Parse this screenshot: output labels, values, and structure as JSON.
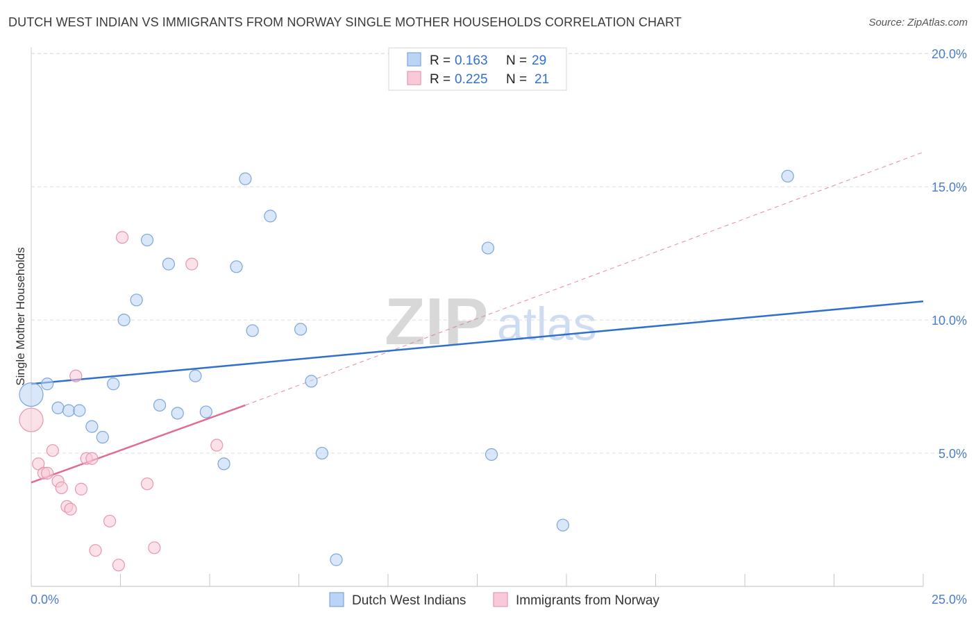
{
  "title": "DUTCH WEST INDIAN VS IMMIGRANTS FROM NORWAY SINGLE MOTHER HOUSEHOLDS CORRELATION CHART",
  "source": "Source: ZipAtlas.com",
  "watermark": {
    "zip": "ZIP",
    "atlas": "atlas"
  },
  "colors": {
    "blue_fill": "#bcd4f4",
    "blue_stroke": "#7aa6dc",
    "blue_line": "#2f6fce",
    "pink_fill": "#f8c9d6",
    "pink_stroke": "#e895b0",
    "pink_line": "#e06b96",
    "tick_label": "#4a7cc9",
    "grid": "#dcdcdc"
  },
  "legend_top": [
    {
      "r_label": "R =",
      "r_value": "0.163",
      "n_label": "N =",
      "n_value": "29"
    },
    {
      "r_label": "R =",
      "r_value": "0.225",
      "n_label": "N =",
      "n_value": "21"
    }
  ],
  "chart_data": {
    "type": "scatter",
    "title": "DUTCH WEST INDIAN VS IMMIGRANTS FROM NORWAY SINGLE MOTHER HOUSEHOLDS CORRELATION CHART",
    "xlabel": "",
    "ylabel": "Single Mother Households",
    "xlim": [
      0,
      25
    ],
    "ylim": [
      0,
      20.5
    ],
    "x_tick_labels": [
      "0.0%",
      "25.0%"
    ],
    "y_ticks": [
      5,
      10,
      15,
      20
    ],
    "y_tick_labels": [
      "5.0%",
      "10.0%",
      "15.0%",
      "20.0%"
    ],
    "legend_position": "bottom-center",
    "series": [
      {
        "name": "Dutch West Indians",
        "color": "blue",
        "r": 0.163,
        "n": 29,
        "trend": {
          "x": [
            0,
            25
          ],
          "y": [
            7.6,
            10.7
          ],
          "style": "solid"
        },
        "points": [
          {
            "x": 0.0,
            "y": 7.2,
            "big": true
          },
          {
            "x": 0.45,
            "y": 7.6
          },
          {
            "x": 0.75,
            "y": 6.7
          },
          {
            "x": 1.05,
            "y": 6.6
          },
          {
            "x": 1.35,
            "y": 6.6
          },
          {
            "x": 1.7,
            "y": 6.0
          },
          {
            "x": 2.0,
            "y": 5.6
          },
          {
            "x": 2.3,
            "y": 7.6
          },
          {
            "x": 2.6,
            "y": 10.0
          },
          {
            "x": 2.95,
            "y": 10.75
          },
          {
            "x": 3.25,
            "y": 13.0
          },
          {
            "x": 3.6,
            "y": 6.8
          },
          {
            "x": 3.85,
            "y": 12.1
          },
          {
            "x": 4.1,
            "y": 6.5
          },
          {
            "x": 4.6,
            "y": 7.9
          },
          {
            "x": 4.9,
            "y": 6.55
          },
          {
            "x": 5.4,
            "y": 4.6
          },
          {
            "x": 5.75,
            "y": 12.0
          },
          {
            "x": 6.0,
            "y": 15.3
          },
          {
            "x": 6.2,
            "y": 9.6
          },
          {
            "x": 6.7,
            "y": 13.9
          },
          {
            "x": 7.55,
            "y": 9.65
          },
          {
            "x": 7.85,
            "y": 7.7
          },
          {
            "x": 8.15,
            "y": 5.0
          },
          {
            "x": 8.55,
            "y": 1.0
          },
          {
            "x": 12.8,
            "y": 12.7
          },
          {
            "x": 12.9,
            "y": 4.95
          },
          {
            "x": 14.9,
            "y": 2.3
          },
          {
            "x": 21.2,
            "y": 15.4
          }
        ]
      },
      {
        "name": "Immigrants from Norway",
        "color": "pink",
        "r": 0.225,
        "n": 21,
        "trend": {
          "x": [
            0,
            6.0
          ],
          "y": [
            3.9,
            6.8
          ],
          "style": "solid",
          "extended": {
            "x": [
              6.0,
              25
            ],
            "y": [
              6.8,
              16.3
            ],
            "style": "dashed"
          }
        },
        "points": [
          {
            "x": 0.0,
            "y": 6.25,
            "big": true
          },
          {
            "x": 0.2,
            "y": 4.6
          },
          {
            "x": 0.35,
            "y": 4.25
          },
          {
            "x": 0.45,
            "y": 4.25
          },
          {
            "x": 0.6,
            "y": 5.1
          },
          {
            "x": 0.75,
            "y": 3.95
          },
          {
            "x": 0.85,
            "y": 3.7
          },
          {
            "x": 1.0,
            "y": 3.0
          },
          {
            "x": 1.1,
            "y": 2.9
          },
          {
            "x": 1.25,
            "y": 7.9
          },
          {
            "x": 1.4,
            "y": 3.65
          },
          {
            "x": 1.55,
            "y": 4.8
          },
          {
            "x": 1.7,
            "y": 4.8
          },
          {
            "x": 1.8,
            "y": 1.35
          },
          {
            "x": 2.2,
            "y": 2.45
          },
          {
            "x": 2.45,
            "y": 0.8
          },
          {
            "x": 2.55,
            "y": 13.1
          },
          {
            "x": 3.25,
            "y": 3.85
          },
          {
            "x": 3.45,
            "y": 1.45
          },
          {
            "x": 4.5,
            "y": 12.1
          },
          {
            "x": 5.2,
            "y": 5.3
          }
        ]
      }
    ]
  }
}
